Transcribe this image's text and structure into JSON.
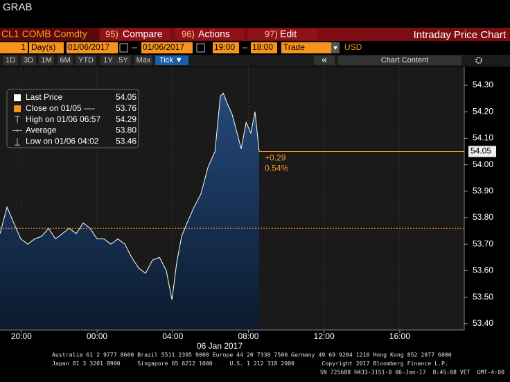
{
  "header": {
    "title": "GRAB",
    "ticker": "CL1 COMB Comdty",
    "menu": [
      {
        "num": "95)",
        "label": "Compare"
      },
      {
        "num": "96)",
        "label": "Actions"
      },
      {
        "num": "97)",
        "label": "Edit"
      }
    ],
    "panel_title": "Intraday Price Chart"
  },
  "controls": {
    "days": "1",
    "unit": "Day(s)",
    "start_date": "01/06/2017",
    "end_date": "01/06/2017",
    "start_time": "19:00",
    "end_time": "18:00",
    "field": "Trade",
    "currency": "USD",
    "periods": [
      "1D",
      "3D",
      "1M",
      "6M",
      "YTD",
      "1Y",
      "5Y",
      "Max"
    ],
    "interval": "Tick ▼",
    "collapse": "«",
    "content": "Chart Content"
  },
  "chart_data": {
    "type": "area",
    "x_label": "06 Jan 2017",
    "x": [
      -5.13,
      -4.76,
      -4.4,
      -4.03,
      -3.66,
      -3.3,
      -2.93,
      -2.56,
      -2.2,
      -1.83,
      -1.47,
      -1.1,
      -0.73,
      -0.37,
      0,
      0.37,
      0.73,
      1.1,
      1.47,
      1.83,
      2.2,
      2.56,
      2.93,
      3.3,
      3.66,
      3.96,
      4.21,
      4.47,
      4.76,
      5.13,
      5.49,
      5.86,
      6.23,
      6.52,
      6.67,
      6.89,
      7.14,
      7.4,
      7.62,
      7.88,
      8.13,
      8.35,
      8.57
    ],
    "series": [
      {
        "name": "Last Price",
        "color": "#ffffff",
        "values": [
          53.74,
          53.84,
          53.78,
          53.72,
          53.7,
          53.72,
          53.73,
          53.76,
          53.72,
          53.74,
          53.76,
          53.74,
          53.78,
          53.76,
          53.72,
          53.72,
          53.7,
          53.72,
          53.7,
          53.65,
          53.61,
          53.59,
          53.64,
          53.65,
          53.6,
          53.49,
          53.63,
          53.73,
          53.78,
          53.84,
          53.89,
          53.99,
          54.05,
          54.26,
          54.27,
          54.23,
          54.19,
          54.12,
          54.06,
          54.16,
          54.12,
          54.2,
          54.05
        ]
      }
    ],
    "legend": [
      {
        "label": "Last Price",
        "value": 54.05,
        "color": "#ffffff"
      },
      {
        "label": "Close on 01/05 ----",
        "value": 53.76,
        "color": "#f7941d"
      },
      {
        "label": "High on 01/06 06:57",
        "value": 54.29,
        "color": "#cccccc"
      },
      {
        "label": "Average",
        "value": {
          "value": 53.8,
          "label": "53.80"
        },
        "color": "#cccccc"
      },
      {
        "label": "Low on 01/06 04:02",
        "value": 53.46,
        "color": "#cccccc"
      }
    ],
    "annotations": [
      "+0.29",
      "0.54%"
    ],
    "xlim": [
      -5.13,
      19.41
    ],
    "xticks": [
      {
        "value": -4,
        "label": "20:00"
      },
      {
        "value": 0,
        "label": "00:00"
      },
      {
        "value": 4,
        "label": "04:00"
      },
      {
        "value": 8,
        "label": "08:00"
      },
      {
        "value": 12,
        "label": "12:00"
      },
      {
        "value": 16,
        "label": "16:00"
      }
    ],
    "ylim": [
      53.376,
      54.368
    ],
    "yticks": [
      {
        "value": 53.4,
        "label": "53.40"
      },
      {
        "value": 53.5,
        "label": "53.50"
      },
      {
        "value": 53.6,
        "label": "53.60"
      },
      {
        "value": 53.7,
        "label": "53.70"
      },
      {
        "value": 53.8,
        "label": "53.80"
      },
      {
        "value": 53.9,
        "label": "53.90"
      },
      {
        "value": 54.0,
        "label": "54.00"
      },
      {
        "value": 54.1,
        "label": "54.10"
      },
      {
        "value": 54.2,
        "label": "54.20"
      },
      {
        "value": 54.3,
        "label": "54.30"
      }
    ],
    "xgrid": true,
    "area_color": "#1e3a62"
  },
  "footer": [
    "Australia 61 2 9777 8600 Brazil 5511 2395 9000 Europe 44 20 7330 7500 Germany 49 69 9204 1210 Hong Kong 852 2977 6000",
    "Japan 81 3 3201 8900     Singapore 65 6212 1000     U.S. 1 212 318 2000        Copyright 2017 Bloomberg Finance L.P.",
    "SN 725688 H433-3151-0 06-Jan-17  8:45:08 VET  GMT-4:00"
  ]
}
